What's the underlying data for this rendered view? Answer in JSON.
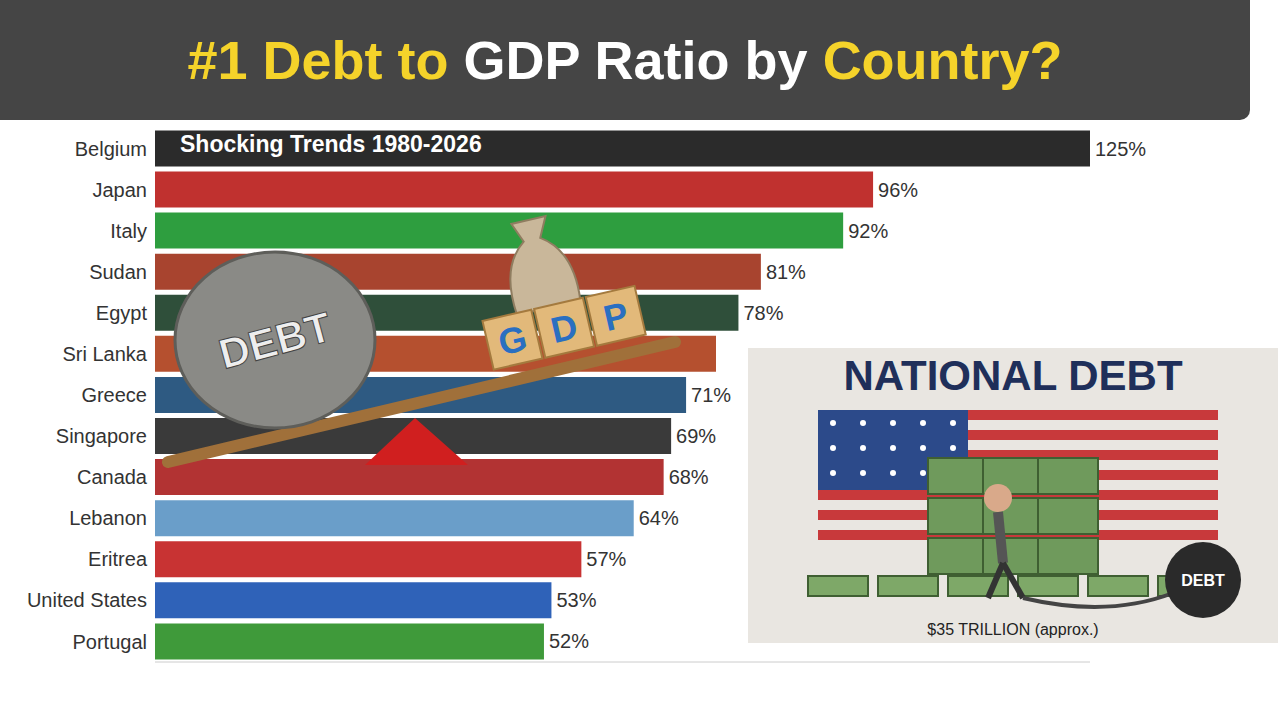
{
  "chart_data": {
    "type": "bar",
    "title": "#1 Debt to GDP Ratio by Country?",
    "subtitle": "Shocking Trends 1980-2026",
    "orientation": "horizontal",
    "categories": [
      "Belgium",
      "Japan",
      "Italy",
      "Sudan",
      "Egypt",
      "Sri Lanka",
      "Greece",
      "Singapore",
      "Canada",
      "Lebanon",
      "Eritrea",
      "United States",
      "Portugal"
    ],
    "values": [
      125,
      96,
      92,
      81,
      78,
      75,
      71,
      69,
      68,
      64,
      57,
      53,
      52
    ],
    "value_labels": [
      "125%",
      "96%",
      "92%",
      "81%",
      "78%",
      null,
      "71%",
      "69%",
      "68%",
      "64%",
      "57%",
      "53%",
      "52%"
    ],
    "colors": [
      "#2b2b2b",
      "#c0312f",
      "#2e9e3f",
      "#a8442f",
      "#2f4f3a",
      "#b5502f",
      "#2e5a82",
      "#3a3a3a",
      "#b23333",
      "#6a9ec9",
      "#c83333",
      "#2f62b8",
      "#3f9a3a"
    ],
    "xlim": [
      0,
      125
    ],
    "data_labels": true,
    "tick_labels": "y",
    "grid": false
  },
  "illustrations": {
    "seesaw": {
      "left": "DEBT",
      "right": "GDP"
    },
    "poster": {
      "title": "NATIONAL DEBT",
      "ball": "DEBT",
      "caption": "$35 TRILLION (approx.)"
    }
  }
}
